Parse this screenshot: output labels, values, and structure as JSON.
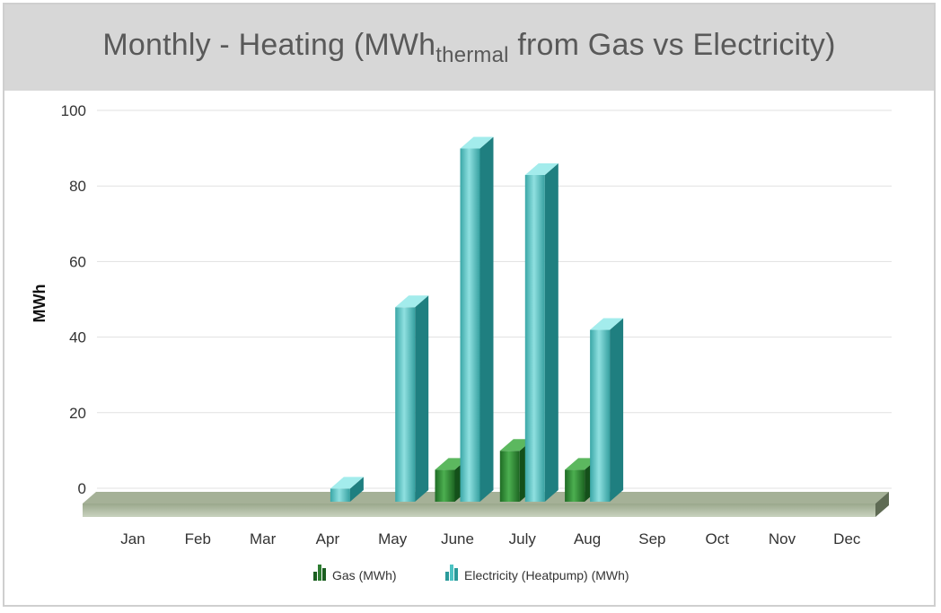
{
  "chart_data": {
    "type": "bar",
    "title_main": "Monthly - Heating (MWh",
    "title_sub": "thermal",
    "title_end": " from Gas vs Electricity)",
    "ylabel": "MWh",
    "xlabel": "",
    "ylim": [
      0,
      100
    ],
    "yticks": [
      0,
      20,
      40,
      60,
      80,
      100
    ],
    "grid": true,
    "legend_position": "bottom",
    "categories": [
      "Jan",
      "Feb",
      "Mar",
      "Apr",
      "May",
      "June",
      "July",
      "Aug",
      "Sep",
      "Oct",
      "Nov",
      "Dec"
    ],
    "series": [
      {
        "name": "Gas (MWh)",
        "color": "#2e7d32",
        "values": [
          0,
          0,
          0,
          0,
          0,
          8,
          13,
          8,
          0,
          0,
          0,
          0
        ]
      },
      {
        "name": "Electricity (Heatpump) (MWh)",
        "color": "#4cc3c3",
        "values": [
          0,
          0,
          0,
          3,
          51,
          93,
          86,
          45,
          0,
          0,
          0,
          0
        ]
      }
    ]
  }
}
